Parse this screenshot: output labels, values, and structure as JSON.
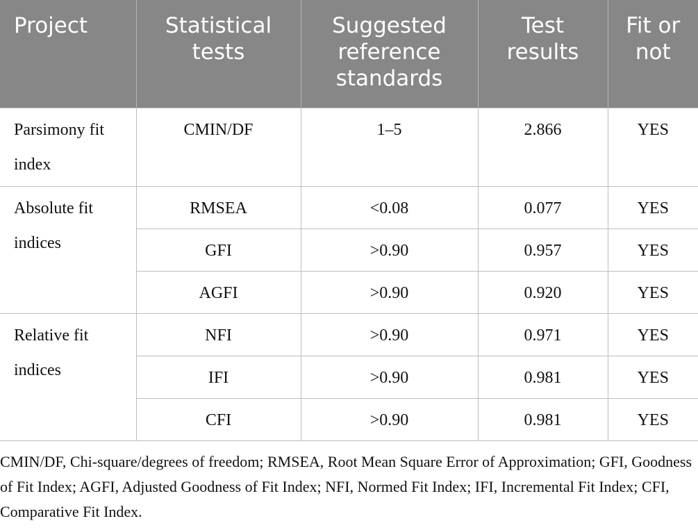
{
  "header": {
    "columns": [
      "Project",
      "Statistical tests",
      "Suggested reference standards",
      "Test results",
      "Fit or not"
    ]
  },
  "table": {
    "groups": [
      {
        "label": "Parsimony fit index",
        "rows": [
          [
            "CMIN/DF",
            "1–5",
            "2.866",
            "YES"
          ]
        ]
      },
      {
        "label": "Absolute fit indices",
        "rows": [
          [
            "RMSEA",
            "<0.08",
            "0.077",
            "YES"
          ],
          [
            "GFI",
            ">0.90",
            "0.957",
            "YES"
          ],
          [
            "AGFI",
            ">0.90",
            "0.920",
            "YES"
          ]
        ]
      },
      {
        "label": "Relative fit indices",
        "rows": [
          [
            "NFI",
            ">0.90",
            "0.971",
            "YES"
          ],
          [
            "IFI",
            ">0.90",
            "0.981",
            "YES"
          ],
          [
            "CFI",
            ">0.90",
            "0.981",
            "YES"
          ]
        ]
      }
    ]
  },
  "footnote": "CMIN/DF, Chi-square/degrees of freedom; RMSEA, Root Mean Square Error of Approximation; GFI, Goodness of Fit Index; AGFI, Adjusted Goodness of Fit Index; NFI, Normed Fit Index; IFI, Incremental Fit Index; CFI, Comparative Fit Index."
}
